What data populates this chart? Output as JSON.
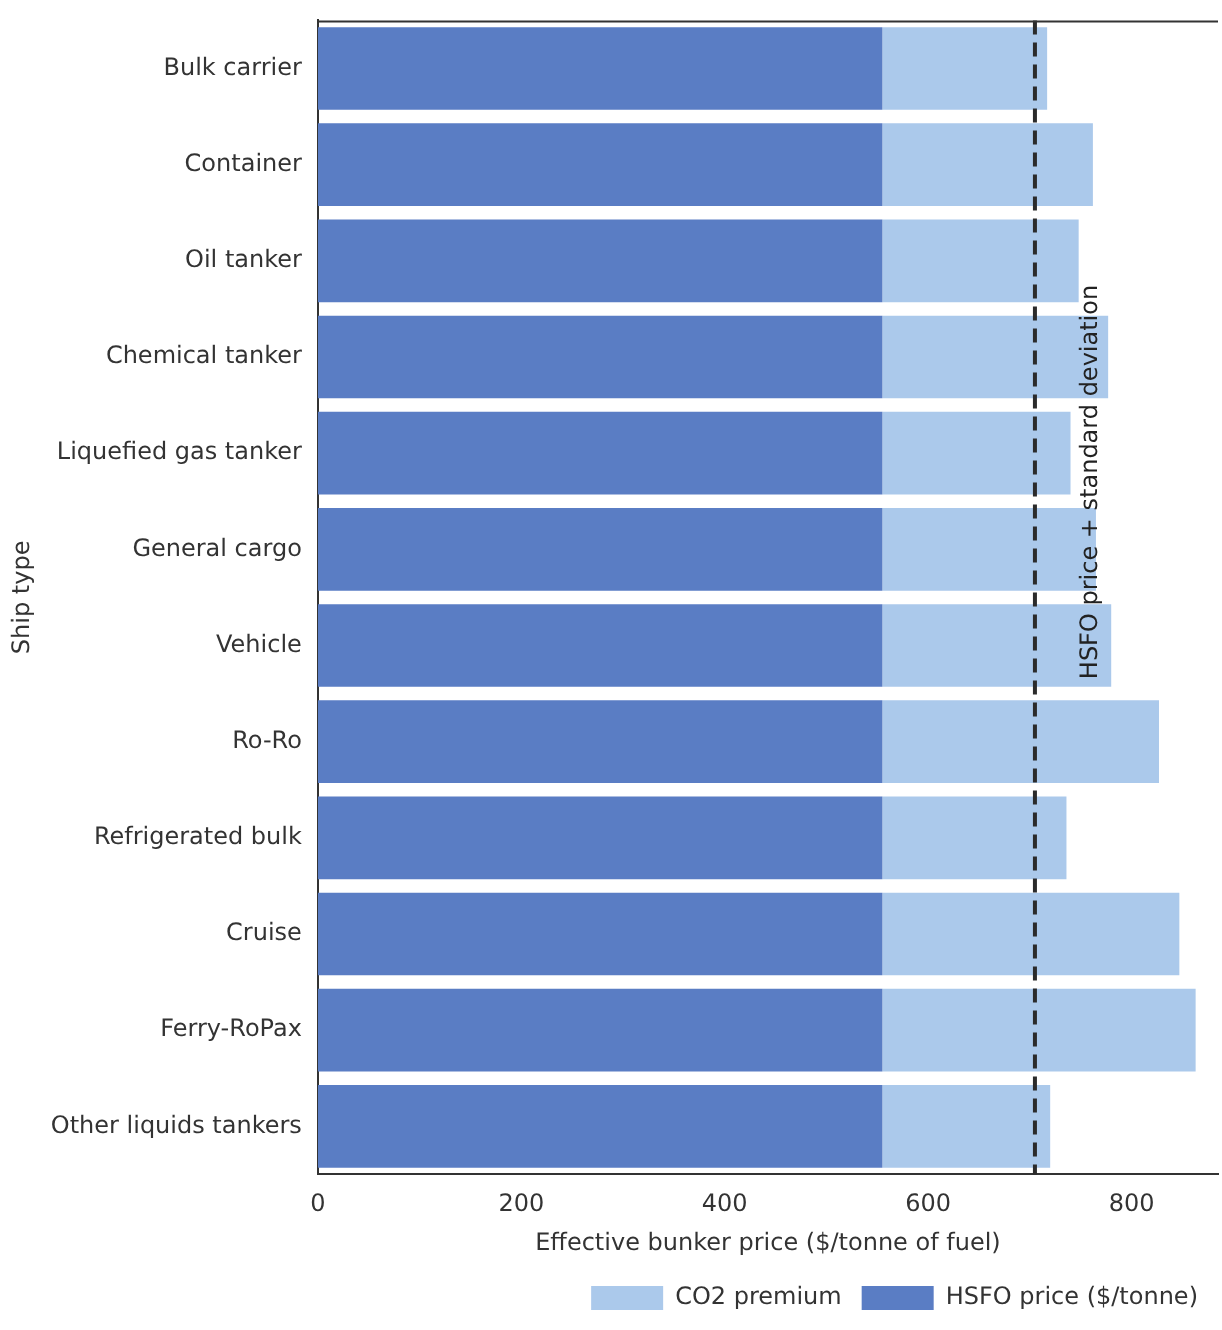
{
  "chart_data": {
    "type": "bar",
    "orientation": "horizontal",
    "stacked": true,
    "xlabel": "Effective bunker price ($/tonne of fuel)",
    "ylabel": "Ship type",
    "categories": [
      "Bulk carrier",
      "Container",
      "Oil tanker",
      "Chemical tanker",
      "Liquefied gas tanker",
      "General cargo",
      "Vehicle",
      "Ro-Ro",
      "Refrigerated bulk",
      "Cruise",
      "Ferry-RoPax",
      "Other liquids tankers"
    ],
    "series": [
      {
        "name": "HSFO price ($/tonne)",
        "color": "#5a7dc4",
        "values": [
          555,
          555,
          555,
          555,
          555,
          555,
          555,
          555,
          555,
          555,
          555,
          555
        ]
      },
      {
        "name": "CO2 premium",
        "color": "#abc9eb",
        "values": [
          162,
          207,
          193,
          222,
          185,
          210,
          225,
          272,
          181,
          292,
          308,
          165
        ]
      }
    ],
    "xlim": [
      0,
      885
    ],
    "xticks": [
      0,
      200,
      400,
      600,
      800
    ],
    "grid": false,
    "legend": "bottom right",
    "ref_lines": [
      {
        "axis": "x",
        "value": 705,
        "label": "HSFO price + standard deviation",
        "color": "#2b2b2b",
        "line_style": "dashed"
      }
    ]
  }
}
